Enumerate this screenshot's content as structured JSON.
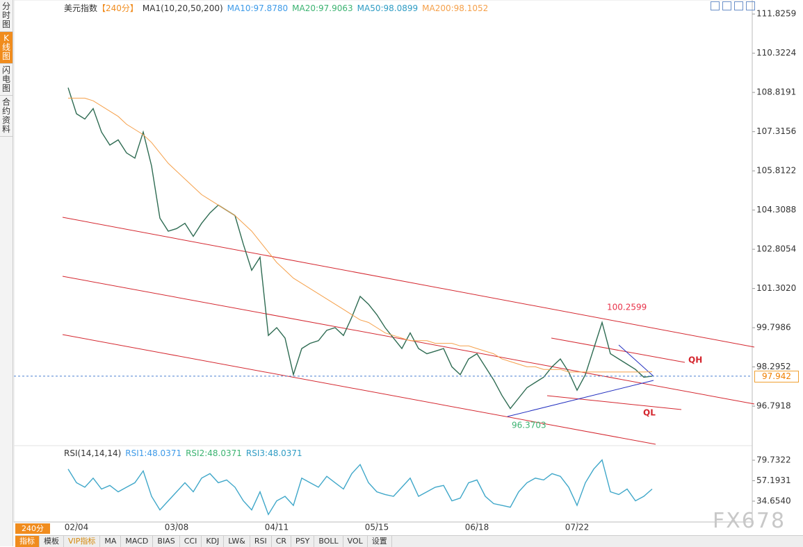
{
  "chart_data": [
    {
      "type": "line",
      "title": "美元指数",
      "period": "【240分】",
      "legend_items": [
        "MA1(10,20,50,200)",
        "MA10:97.8780",
        "MA20:97.9063",
        "MA50:98.0899",
        "MA200:98.1052"
      ],
      "categories": [
        null,
        "02/04",
        null,
        null,
        null,
        null,
        null,
        null,
        null,
        null,
        null,
        null,
        null,
        "03/08",
        null,
        null,
        null,
        null,
        null,
        null,
        null,
        null,
        null,
        null,
        null,
        "04/11",
        null,
        null,
        null,
        null,
        null,
        null,
        null,
        null,
        null,
        null,
        null,
        "05/15",
        null,
        null,
        null,
        null,
        null,
        null,
        null,
        null,
        null,
        null,
        null,
        "06/18",
        null,
        null,
        null,
        null,
        null,
        null,
        null,
        null,
        null,
        null,
        null,
        "07/22",
        null,
        null,
        null,
        null,
        null,
        null,
        null,
        null,
        null
      ],
      "series": [
        {
          "color": "#2e6b52",
          "values": [
            109.0,
            108.0,
            107.8,
            108.2,
            107.3,
            106.8,
            107.0,
            106.5,
            106.3,
            107.3,
            106.0,
            104.0,
            103.5,
            103.6,
            103.8,
            103.3,
            103.8,
            104.2,
            104.5,
            104.3,
            104.1,
            103.0,
            102.0,
            102.5,
            99.5,
            99.8,
            99.4,
            98.0,
            99.0,
            99.2,
            99.3,
            99.7,
            99.8,
            99.5,
            100.2,
            101.0,
            100.7,
            100.3,
            99.8,
            99.4,
            99.0,
            99.6,
            99.0,
            98.8,
            98.9,
            99.0,
            98.3,
            98.0,
            98.6,
            98.8,
            98.3,
            97.8,
            97.2,
            96.7,
            97.1,
            97.5,
            97.7,
            97.9,
            98.3,
            98.6,
            98.1,
            97.4,
            98.0,
            99.0,
            100.0,
            98.8,
            98.6,
            98.4,
            98.2,
            97.9,
            97.942
          ]
        },
        {
          "color": "#f5a04a",
          "values": [
            108.6,
            108.6,
            108.6,
            108.5,
            108.3,
            108.1,
            107.9,
            107.6,
            107.4,
            107.2,
            106.9,
            106.5,
            106.1,
            105.8,
            105.5,
            105.2,
            104.9,
            104.7,
            104.5,
            104.3,
            104.1,
            103.8,
            103.5,
            103.1,
            102.7,
            102.3,
            102.0,
            101.7,
            101.5,
            101.3,
            101.1,
            100.9,
            100.7,
            100.5,
            100.3,
            100.1,
            100.0,
            99.8,
            99.6,
            99.5,
            99.4,
            99.3,
            99.3,
            99.3,
            99.2,
            99.2,
            99.2,
            99.1,
            99.1,
            99.0,
            98.9,
            98.8,
            98.6,
            98.5,
            98.4,
            98.3,
            98.3,
            98.2,
            98.2,
            98.2,
            98.1,
            98.1,
            98.1,
            98.1,
            98.1,
            98.1,
            98.1,
            98.1,
            98.1,
            98.1,
            98.11
          ]
        }
      ],
      "ylim": [
        95.33,
        112.23
      ],
      "yticks": [
        111.8259,
        110.3224,
        108.8191,
        107.3156,
        105.8122,
        104.3088,
        102.8054,
        {
          "value": 101.302,
          "label": "101.3020"
        },
        99.7986,
        98.2952,
        96.7918
      ],
      "grid": false,
      "current": 97.942,
      "price_labels": [
        {
          "value": 100.2599,
          "color": "#e8334a"
        },
        {
          "value": 96.3703,
          "color": "#3cb371"
        }
      ],
      "line_labels": [
        "QH",
        "QL"
      ]
    },
    {
      "type": "line",
      "title": "RSI(14,14,14)",
      "legend_items": [
        "RSI1:48.0371",
        "RSI2:48.0371",
        "RSI3:48.0371"
      ],
      "series": [
        {
          "color": "#3fa7c9",
          "values": [
            70,
            55,
            50,
            60,
            48,
            52,
            45,
            50,
            55,
            68,
            40,
            25,
            35,
            45,
            55,
            45,
            60,
            65,
            55,
            58,
            50,
            35,
            25,
            45,
            20,
            35,
            40,
            30,
            60,
            55,
            50,
            62,
            55,
            48,
            65,
            75,
            55,
            45,
            42,
            40,
            50,
            60,
            40,
            45,
            50,
            52,
            35,
            38,
            55,
            58,
            40,
            32,
            30,
            28,
            45,
            55,
            60,
            58,
            65,
            62,
            50,
            30,
            55,
            70,
            80,
            45,
            42,
            48,
            35,
            40,
            48.0371
          ]
        }
      ],
      "ylim": [
        13.26,
        89.66
      ],
      "yticks": [
        79.7322,
        57.1931,
        {
          "value": 34.654,
          "label": "34.6540"
        }
      ],
      "grid": false
    }
  ],
  "ui": {
    "sidebar": [
      "分时图",
      "K线图",
      "闪电图",
      "合约资料"
    ],
    "period_tab": "240分",
    "tabs": [
      "指标",
      "模板",
      "VIP指标",
      "MA",
      "MACD",
      "BIAS",
      "CCI",
      "KDJ",
      "LW&",
      "RSI",
      "CR",
      "PSY",
      "BOLL",
      "VOL",
      "设置"
    ],
    "watermark": "FX678"
  }
}
